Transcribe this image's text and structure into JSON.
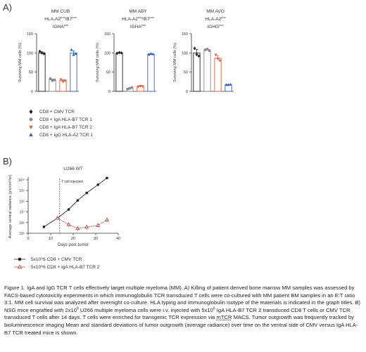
{
  "panel_a": {
    "letter": "A)",
    "charts": [
      {
        "title_line1": "MM CUB",
        "title_line2_base": "HLA-A2",
        "title_line2_sup1": "pos",
        "title_line2_mid": "/B7",
        "title_line2_sup2": "pos",
        "title_line3_base": "IGHA",
        "title_line3_sup": "pos"
      },
      {
        "title_line1": "MM ABY",
        "title_line2_base": "HLA-A2",
        "title_line2_sup1": "neg",
        "title_line2_mid": "/B7",
        "title_line2_sup2": "pos",
        "title_line3_base": "IGHA",
        "title_line3_sup": "pos"
      },
      {
        "title_line1": "MM AVO",
        "title_line2_base": "HLA-A2",
        "title_line2_sup1": "pos",
        "title_line2_mid": "",
        "title_line2_sup2": "",
        "title_line3_base": "IGHG",
        "title_line3_sup": "pos"
      }
    ],
    "legend": [
      {
        "label": "CD8 + CMV TCR",
        "marker": "diamond",
        "color": "#222222"
      },
      {
        "label": "CD8 + IgA HLA-B7 TCR 1",
        "marker": "circle",
        "color": "#8a8a8a"
      },
      {
        "label": "CD8 + IgA HLA-B7 TCR 2",
        "marker": "triangle-down",
        "color": "#e06040"
      },
      {
        "label": "CD8 + IgG HLA-A2 TCR 1",
        "marker": "triangle-up",
        "color": "#2c66b0"
      }
    ]
  },
  "panel_b": {
    "letter": "B)",
    "title": "U266 WT",
    "annotation": "T cell injection",
    "legend": [
      {
        "label": "5x10^6 CD8 + CMV TCR",
        "marker": "circle",
        "color": "#222222"
      },
      {
        "label": "5x10^6 CD8 + IgA HLA-B7 TCR 2",
        "marker": "triangle-up",
        "color": "#c0504d"
      }
    ]
  },
  "chart_data": [
    {
      "type": "bar",
      "title": "MM CUB",
      "ylabel": "Surviving MM cells (%)",
      "ylim": [
        0,
        150
      ],
      "yticks": [
        "0",
        "50",
        "100",
        "150"
      ],
      "categories": [
        "CD8 + CMV TCR",
        "CD8 + IgA HLA-B7 TCR 1",
        "CD8 + IgA HLA-B7 TCR 2",
        "CD8 + IgG HLA-A2 TCR 1"
      ],
      "values": [
        100,
        30,
        28,
        100
      ],
      "points": [
        [
          104,
          100,
          98
        ],
        [
          33,
          28,
          30
        ],
        [
          31,
          25,
          28
        ],
        [
          108,
          95,
          98
        ]
      ],
      "colors": [
        "#222222",
        "#8a8a8a",
        "#e06040",
        "#2c66b0"
      ]
    },
    {
      "type": "bar",
      "title": "MM ABY",
      "ylabel": "Surviving MM cells (%)",
      "ylim": [
        0,
        150
      ],
      "yticks": [
        "0",
        "50",
        "100",
        "150"
      ],
      "categories": [
        "CD8 + CMV TCR",
        "CD8 + IgA HLA-B7 TCR 1",
        "CD8 + IgA HLA-B7 TCR 2",
        "CD8 + IgG HLA-A2 TCR 1"
      ],
      "values": [
        100,
        8,
        13,
        97
      ],
      "points": [
        [
          99,
          101,
          100
        ],
        [
          6,
          8,
          10
        ],
        [
          12,
          14,
          13
        ],
        [
          96,
          98,
          97
        ]
      ],
      "colors": [
        "#222222",
        "#8a8a8a",
        "#e06040",
        "#2c66b0"
      ]
    },
    {
      "type": "bar",
      "title": "MM AVO",
      "ylabel": "Surviving MM cells (%)",
      "ylim": [
        0,
        150
      ],
      "yticks": [
        "0",
        "50",
        "100",
        "150"
      ],
      "categories": [
        "CD8 + CMV TCR",
        "CD8 + IgA HLA-B7 TCR 1",
        "CD8 + IgA HLA-B7 TCR 2",
        "CD8 + IgG HLA-A2 TCR 1"
      ],
      "values": [
        100,
        108,
        86,
        17
      ],
      "points": [
        [
          112,
          96,
          92
        ],
        [
          108,
          110,
          106
        ],
        [
          95,
          85,
          80
        ],
        [
          17,
          17,
          18
        ]
      ],
      "colors": [
        "#222222",
        "#8a8a8a",
        "#e06040",
        "#2c66b0"
      ]
    },
    {
      "type": "line",
      "title": "U266 WT",
      "xlabel": "Days post tumor",
      "ylabel": "Average ventral radiance (p/s/cm²/sr)",
      "xlim": [
        0,
        40
      ],
      "xticks": [
        "0",
        "10",
        "20",
        "30",
        "40"
      ],
      "ylim_log10": [
        5,
        10
      ],
      "yticks": [
        "10⁵",
        "10⁶",
        "10⁷",
        "10⁸",
        "10⁹",
        "10¹⁰"
      ],
      "vline_x": 14,
      "series": [
        {
          "name": "5x10^6 CD8 + CMV TCR",
          "x": [
            7,
            13,
            18,
            22,
            26,
            31,
            35
          ],
          "y": [
            400000,
            2600000,
            17000000,
            120000000,
            600000000,
            3500000000,
            15000000000
          ],
          "color": "#222222"
        },
        {
          "name": "5x10^6 CD8 + IgA HLA-B7 TCR 2",
          "x": [
            13,
            18,
            22,
            26,
            31,
            35
          ],
          "y": [
            2600000,
            650000,
            280000,
            380000,
            550000,
            1800000
          ],
          "color": "#c0504d"
        }
      ]
    }
  ],
  "caption": {
    "p1": "Figure 1. IgA and IgG TCR T cells effectively target multiple myeloma (MM). A) Killing of patient derived bone marrow MM samples was assessed by FACS-based cytotoxicity experiments in which immunoglobulin TCR transduced T cells were co-cultured with MM patient BM samples in an E:T ratio 3:1. MM cell survival was analyzed after overnight co-culture. HLA typing and immunoglobulin isotype of the materials is indicated in the graph titles. B) NSG mice engrafted with 2x10",
    "sup1": "6",
    "p2": " U266 multiple myeloma cells were i.v. injected with 5x10",
    "sup2": "6",
    "p3": " IgA HLA-B7 TCR 2 transduced CD8 T cells or CMV TCR transduced T cells after 14 days. T cells were enriched for transgenic TCR expression via ",
    "underlined": "mTCR",
    "p4": " MACS. Tumor outgrowth was frequently tracked by bioluminescence imaging Mean and standard deviations of tumor outgrowth (average radiance) over time on the ventral side of CMV versus IgA HLA-B7 TCR treated mice is shown."
  }
}
